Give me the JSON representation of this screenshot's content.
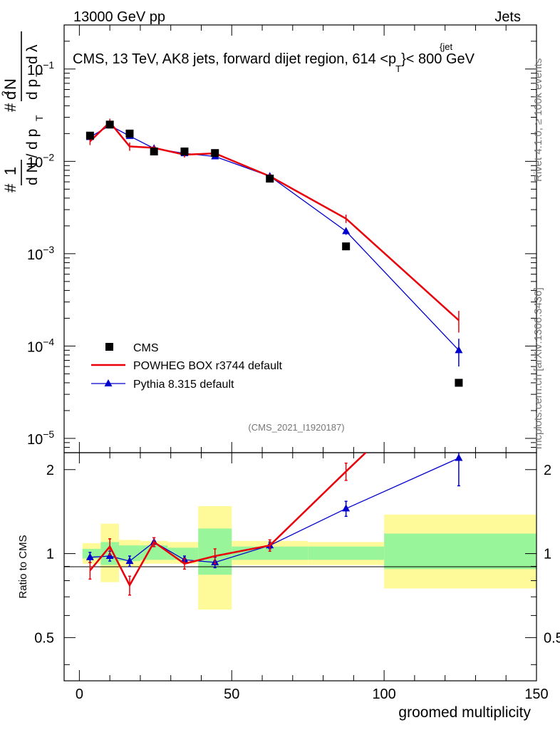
{
  "header": {
    "energy_label": "13000 GeV pp",
    "category": "Jets",
    "plot_title": "CMS, 13 TeV, AK8 jets, forward dijet region, 614 <p",
    "plot_title_tail": "}< 800 GeV",
    "title_sup": "{jet",
    "title_sub": "T",
    "rivet_label": "Rivet 4.1.0, ≥ 100k events",
    "mcplots_label": "mcplots.cern.ch [arXiv:1306.3436]",
    "analysis_id": "(CMS_2021_I1920187)"
  },
  "chart_data": {
    "type": "line",
    "title": "CMS, 13 TeV, AK8 jets, forward dijet region, 614 < pT(jet) < 800 GeV",
    "xlabel": "groomed multiplicity",
    "ylabel": "1/dN/dpT  d²N/dpT dλ",
    "ratio_ylabel": "Ratio to CMS",
    "xlim": [
      -5,
      150
    ],
    "ylim": [
      7e-06,
      0.3
    ],
    "ratio_ylim": [
      0.35,
      2.3
    ],
    "yscale": "log",
    "x_ticks": [
      0,
      50,
      100,
      150
    ],
    "x_tick_labels": [
      "0",
      "50",
      "100",
      "150"
    ],
    "y_tick_labels": [
      {
        "value": 0.1,
        "base": "10",
        "exp": "−1"
      },
      {
        "value": 0.01,
        "base": "10",
        "exp": "−2"
      },
      {
        "value": 0.001,
        "base": "10",
        "exp": "−3"
      },
      {
        "value": 0.0001,
        "base": "10",
        "exp": "−4"
      },
      {
        "value": 1e-05,
        "base": "10",
        "exp": "−5"
      }
    ],
    "ratio_y_ticks": [
      0.5,
      1,
      2
    ],
    "ratio_y_tick_labels": [
      "0.5",
      "1",
      "2"
    ],
    "legend": [
      {
        "name": "CMS",
        "color": "#000000",
        "marker": "square"
      },
      {
        "name": "POWHEG BOX r3744 default",
        "color": "#e8000b",
        "marker": "line"
      },
      {
        "name": "Pythia 8.315 default",
        "color": "#0000cc",
        "marker": "triangle"
      }
    ],
    "data": {
      "name": "CMS",
      "x": [
        3.5,
        10,
        16.5,
        24.5,
        34.5,
        44.5,
        62.5,
        87.5,
        124.5
      ],
      "values": [
        0.019,
        0.025,
        0.02,
        0.0128,
        0.0128,
        0.0123,
        0.0065,
        0.0012,
        4e-05
      ],
      "bins": [
        [
          1,
          7
        ],
        [
          7,
          13
        ],
        [
          13,
          20
        ],
        [
          20,
          29
        ],
        [
          29,
          39
        ],
        [
          39,
          50
        ],
        [
          50,
          75
        ],
        [
          75,
          100
        ],
        [
          100,
          150
        ]
      ],
      "band_inner": [
        [
          0.96,
          1.04
        ],
        [
          0.91,
          1.1
        ],
        [
          0.94,
          1.07
        ],
        [
          0.95,
          1.07
        ],
        [
          0.95,
          1.05
        ],
        [
          0.84,
          1.23
        ],
        [
          0.95,
          1.06
        ],
        [
          0.95,
          1.06
        ],
        [
          0.88,
          1.18
        ]
      ],
      "band_outer": [
        [
          0.92,
          1.09
        ],
        [
          0.79,
          1.28
        ],
        [
          0.9,
          1.12
        ],
        [
          0.92,
          1.11
        ],
        [
          0.92,
          1.1
        ],
        [
          0.63,
          1.48
        ],
        [
          0.91,
          1.11
        ],
        [
          0.91,
          1.1
        ],
        [
          0.75,
          1.38
        ]
      ]
    },
    "series": [
      {
        "name": "POWHEG BOX r3744 default",
        "color": "#e8000b",
        "x": [
          3.5,
          10,
          16.5,
          24.5,
          34.5,
          44.5,
          62.5,
          87.5,
          124.5
        ],
        "values": [
          0.0165,
          0.0265,
          0.0145,
          0.014,
          0.0118,
          0.0122,
          0.0069,
          0.0024,
          0.00019
        ],
        "err": [
          0.0015,
          0.0025,
          0.0015,
          0.0008,
          0.0008,
          0.0008,
          0.0004,
          0.00025,
          5e-05
        ],
        "ratio": [
          0.87,
          1.06,
          0.77,
          1.1,
          0.92,
          0.98,
          1.07,
          1.97,
          4.8
        ],
        "ratio_err": [
          0.06,
          0.07,
          0.06,
          0.04,
          0.04,
          0.06,
          0.05,
          0.14,
          1.2
        ]
      },
      {
        "name": "Pythia 8.315 default",
        "color": "#0000cc",
        "x": [
          3.5,
          10,
          16.5,
          24.5,
          34.5,
          44.5,
          62.5,
          87.5,
          124.5
        ],
        "values": [
          0.0183,
          0.0245,
          0.0188,
          0.0138,
          0.0122,
          0.0113,
          0.0069,
          0.00175,
          9e-05
        ],
        "err": [
          0.001,
          0.0015,
          0.001,
          0.0007,
          0.0006,
          0.0006,
          0.0003,
          0.00015,
          3e-05
        ],
        "ratio": [
          0.97,
          0.98,
          0.94,
          1.1,
          0.95,
          0.93,
          1.07,
          1.45,
          2.2
        ],
        "ratio_err": [
          0.04,
          0.04,
          0.04,
          0.04,
          0.03,
          0.04,
          0.03,
          0.09,
          0.45
        ]
      }
    ]
  }
}
